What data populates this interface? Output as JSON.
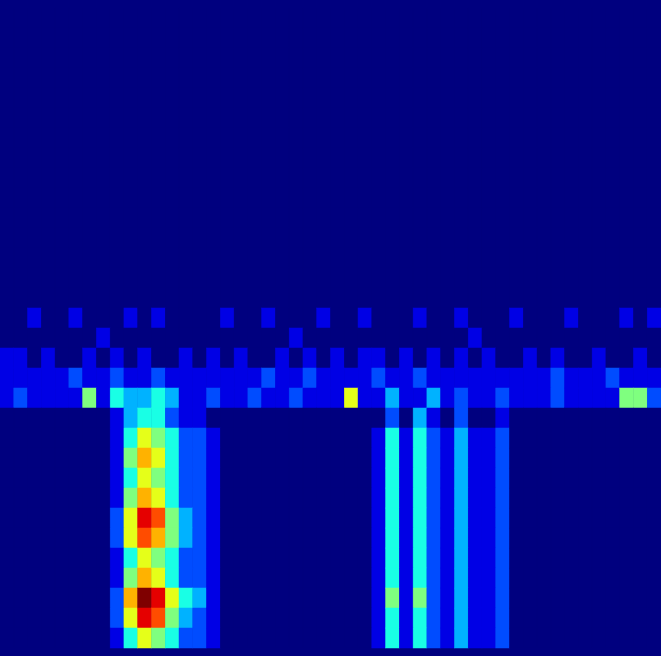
{
  "chart_data": {
    "type": "heatmap",
    "tick_labels": false,
    "zlim": [
      0,
      10
    ],
    "cells": [
      [
        0,
        0,
        0,
        0,
        0,
        0,
        0,
        0,
        0,
        0,
        0,
        0,
        0,
        0,
        0,
        0,
        0,
        0,
        0,
        0,
        0,
        0,
        0,
        0,
        0,
        0,
        0,
        0,
        0,
        0,
        0,
        0,
        0,
        0,
        0,
        0,
        0,
        0,
        0,
        0,
        0,
        0,
        0,
        0,
        0,
        0,
        0,
        0
      ],
      [
        0,
        0,
        0,
        0,
        0,
        0,
        0,
        0,
        0,
        0,
        0,
        0,
        0,
        0,
        0,
        0,
        0,
        0,
        0,
        0,
        0,
        0,
        0,
        0,
        0,
        0,
        0,
        0,
        0,
        0,
        0,
        0,
        0,
        0,
        0,
        0,
        0,
        0,
        0,
        0,
        0,
        0,
        0,
        0,
        0,
        0,
        0,
        0
      ],
      [
        0,
        0,
        0,
        0,
        0,
        0,
        0,
        0,
        0,
        0,
        0,
        0,
        0,
        0,
        0,
        0,
        0,
        0,
        0,
        0,
        0,
        0,
        0,
        0,
        0,
        0,
        0,
        0,
        0,
        0,
        0,
        0,
        0,
        0,
        0,
        0,
        0,
        0,
        0,
        0,
        0,
        0,
        0,
        0,
        0,
        0,
        0,
        0
      ],
      [
        0,
        0,
        0,
        0,
        0,
        0,
        0,
        0,
        0,
        0,
        0,
        0,
        0,
        0,
        0,
        0,
        0,
        0,
        0,
        0,
        0,
        0,
        0,
        0,
        0,
        0,
        0,
        0,
        0,
        0,
        0,
        0,
        0,
        0,
        0,
        0,
        0,
        0,
        0,
        0,
        0,
        0,
        0,
        0,
        0,
        0,
        0,
        0
      ],
      [
        0,
        0,
        0,
        0,
        0,
        0,
        0,
        0,
        0,
        0,
        0,
        0,
        0,
        0,
        0,
        0,
        0,
        0,
        0,
        0,
        0,
        0,
        0,
        0,
        0,
        0,
        0,
        0,
        0,
        0,
        0,
        0,
        0,
        0,
        0,
        0,
        0,
        0,
        0,
        0,
        0,
        0,
        0,
        0,
        0,
        0,
        0,
        0
      ],
      [
        0,
        0,
        0,
        0,
        0,
        0,
        0,
        0,
        0,
        0,
        0,
        0,
        0,
        0,
        0,
        0,
        0,
        0,
        0,
        0,
        0,
        0,
        0,
        0,
        0,
        0,
        0,
        0,
        0,
        0,
        0,
        0,
        0,
        0,
        0,
        0,
        0,
        0,
        0,
        0,
        0,
        0,
        0,
        0,
        0,
        0,
        0,
        0
      ],
      [
        0,
        0,
        0,
        0,
        0,
        0,
        0,
        0,
        0,
        0,
        0,
        0,
        0,
        0,
        0,
        0,
        0,
        0,
        0,
        0,
        0,
        0,
        0,
        0,
        0,
        0,
        0,
        0,
        0,
        0,
        0,
        0,
        0,
        0,
        0,
        0,
        0,
        0,
        0,
        0,
        0,
        0,
        0,
        0,
        0,
        0,
        0,
        0
      ],
      [
        0,
        0,
        0,
        0,
        0,
        0,
        0,
        0,
        0,
        0,
        0,
        0,
        0,
        0,
        0,
        0,
        0,
        0,
        0,
        0,
        0,
        0,
        0,
        0,
        0,
        0,
        0,
        0,
        0,
        0,
        0,
        0,
        0,
        0,
        0,
        0,
        0,
        0,
        0,
        0,
        0,
        0,
        0,
        0,
        0,
        0,
        0,
        0
      ],
      [
        0,
        0,
        0,
        0,
        0,
        0,
        0,
        0,
        0,
        0,
        0,
        0,
        0,
        0,
        0,
        0,
        0,
        0,
        0,
        0,
        0,
        0,
        0,
        0,
        0,
        0,
        0,
        0,
        0,
        0,
        0,
        0,
        0,
        0,
        0,
        0,
        0,
        0,
        0,
        0,
        0,
        0,
        0,
        0,
        0,
        0,
        0,
        0
      ],
      [
        0,
        0,
        0,
        0,
        0,
        0,
        0,
        0,
        0,
        0,
        0,
        0,
        0,
        0,
        0,
        0,
        0,
        0,
        0,
        0,
        0,
        0,
        0,
        0,
        0,
        0,
        0,
        0,
        0,
        0,
        0,
        0,
        0,
        0,
        0,
        0,
        0,
        0,
        0,
        0,
        0,
        0,
        0,
        0,
        0,
        0,
        0,
        0
      ],
      [
        0,
        0,
        0,
        0,
        0,
        0,
        0,
        0,
        0,
        0,
        0,
        0,
        0,
        0,
        0,
        0,
        0,
        0,
        0,
        0,
        0,
        0,
        0,
        0,
        0,
        0,
        0,
        0,
        0,
        0,
        0,
        0,
        0,
        0,
        0,
        0,
        0,
        0,
        0,
        0,
        0,
        0,
        0,
        0,
        0,
        0,
        0,
        0
      ],
      [
        0,
        0,
        0,
        0,
        0,
        0,
        0,
        0,
        0,
        0,
        0,
        0,
        0,
        0,
        0,
        0,
        0,
        0,
        0,
        0,
        0,
        0,
        0,
        0,
        0,
        0,
        0,
        0,
        0,
        0,
        0,
        0,
        0,
        0,
        0,
        0,
        0,
        0,
        0,
        0,
        0,
        0,
        0,
        0,
        0,
        0,
        0,
        0
      ],
      [
        0,
        0,
        0,
        0,
        0,
        0,
        0,
        0,
        0,
        0,
        0,
        0,
        0,
        0,
        0,
        0,
        0,
        0,
        0,
        0,
        0,
        0,
        0,
        0,
        0,
        0,
        0,
        0,
        0,
        0,
        0,
        0,
        0,
        0,
        0,
        0,
        0,
        0,
        0,
        0,
        0,
        0,
        0,
        0,
        0,
        0,
        0,
        0
      ],
      [
        0,
        0,
        0,
        0,
        0,
        0,
        0,
        0,
        0,
        0,
        0,
        0,
        0,
        0,
        0,
        0,
        0,
        0,
        0,
        0,
        0,
        0,
        0,
        0,
        0,
        0,
        0,
        0,
        0,
        0,
        0,
        0,
        0,
        0,
        0,
        0,
        0,
        0,
        0,
        0,
        0,
        0,
        0,
        0,
        0,
        0,
        0,
        0
      ],
      [
        0,
        0,
        0,
        0,
        0,
        0,
        0,
        0,
        0,
        0,
        0,
        0,
        0,
        0,
        0,
        0,
        0,
        0,
        0,
        0,
        0,
        0,
        0,
        0,
        0,
        0,
        0,
        0,
        0,
        0,
        0,
        0,
        0,
        0,
        0,
        0,
        0,
        0,
        0,
        0,
        0,
        0,
        0,
        0,
        0,
        0,
        0,
        0
      ],
      [
        0,
        0,
        1,
        0,
        0,
        1,
        0,
        0,
        0,
        1,
        0,
        1,
        0,
        0,
        0,
        0,
        1,
        0,
        0,
        1,
        0,
        0,
        0,
        1,
        0,
        0,
        1,
        0,
        0,
        0,
        1,
        0,
        0,
        1,
        0,
        0,
        0,
        1,
        0,
        0,
        0,
        1,
        0,
        0,
        0,
        1,
        0,
        1
      ],
      [
        0,
        0,
        0,
        0,
        0,
        0,
        0,
        1,
        0,
        0,
        0,
        0,
        0,
        0,
        0,
        0,
        0,
        0,
        0,
        0,
        0,
        1,
        0,
        0,
        0,
        0,
        0,
        0,
        0,
        0,
        0,
        0,
        0,
        0,
        1,
        0,
        0,
        0,
        0,
        0,
        0,
        0,
        0,
        0,
        0,
        0,
        0,
        0
      ],
      [
        1,
        1,
        0,
        1,
        0,
        0,
        1,
        0,
        1,
        0,
        1,
        0,
        0,
        1,
        0,
        1,
        0,
        1,
        0,
        0,
        1,
        0,
        1,
        0,
        1,
        0,
        1,
        1,
        0,
        1,
        0,
        1,
        0,
        1,
        0,
        1,
        0,
        0,
        1,
        0,
        1,
        0,
        0,
        1,
        0,
        0,
        1,
        0
      ],
      [
        1,
        1,
        1,
        1,
        1,
        2,
        1,
        1,
        2,
        1,
        1,
        2,
        1,
        1,
        1,
        1,
        1,
        1,
        1,
        2,
        1,
        1,
        2,
        1,
        1,
        1,
        1,
        2,
        1,
        1,
        2,
        1,
        1,
        1,
        1,
        1,
        1,
        1,
        1,
        1,
        2,
        1,
        1,
        1,
        2,
        1,
        1,
        1
      ],
      [
        1,
        2,
        1,
        1,
        1,
        1,
        5,
        1,
        4,
        3,
        3,
        4,
        3,
        1,
        1,
        2,
        1,
        1,
        2,
        1,
        1,
        2,
        1,
        1,
        1,
        6,
        1,
        1,
        3,
        1,
        1,
        3,
        1,
        2,
        1,
        1,
        2,
        1,
        1,
        1,
        2,
        1,
        1,
        1,
        1,
        5,
        5,
        2
      ],
      [
        0,
        0,
        0,
        0,
        0,
        0,
        0,
        0,
        1,
        3,
        4,
        4,
        2,
        1,
        1,
        0,
        0,
        0,
        0,
        0,
        0,
        0,
        0,
        0,
        0,
        0,
        0,
        0,
        2,
        0,
        3,
        1,
        0,
        2,
        0,
        0,
        1,
        0,
        0,
        0,
        0,
        0,
        0,
        0,
        0,
        0,
        0,
        0
      ],
      [
        0,
        0,
        0,
        0,
        0,
        0,
        0,
        0,
        1,
        4,
        6,
        5,
        4,
        2,
        2,
        1,
        0,
        0,
        0,
        0,
        0,
        0,
        0,
        0,
        0,
        0,
        0,
        1,
        4,
        1,
        4,
        2,
        1,
        3,
        1,
        1,
        2,
        0,
        0,
        0,
        0,
        0,
        0,
        0,
        0,
        0,
        0,
        0
      ],
      [
        0,
        0,
        0,
        0,
        0,
        0,
        0,
        0,
        1,
        5,
        7,
        6,
        4,
        2,
        2,
        1,
        0,
        0,
        0,
        0,
        0,
        0,
        0,
        0,
        0,
        0,
        0,
        1,
        4,
        1,
        4,
        2,
        1,
        3,
        1,
        1,
        2,
        0,
        0,
        0,
        0,
        0,
        0,
        0,
        0,
        0,
        0,
        0
      ],
      [
        0,
        0,
        0,
        0,
        0,
        0,
        0,
        0,
        1,
        4,
        6,
        5,
        4,
        2,
        2,
        1,
        0,
        0,
        0,
        0,
        0,
        0,
        0,
        0,
        0,
        0,
        0,
        1,
        4,
        1,
        4,
        2,
        1,
        3,
        1,
        1,
        2,
        0,
        0,
        0,
        0,
        0,
        0,
        0,
        0,
        0,
        0,
        0
      ],
      [
        0,
        0,
        0,
        0,
        0,
        0,
        0,
        0,
        1,
        5,
        7,
        6,
        4,
        2,
        2,
        1,
        0,
        0,
        0,
        0,
        0,
        0,
        0,
        0,
        0,
        0,
        0,
        1,
        4,
        1,
        4,
        2,
        1,
        3,
        1,
        1,
        2,
        0,
        0,
        0,
        0,
        0,
        0,
        0,
        0,
        0,
        0,
        0
      ],
      [
        0,
        0,
        0,
        0,
        0,
        0,
        0,
        0,
        2,
        6,
        9,
        8,
        5,
        3,
        2,
        1,
        0,
        0,
        0,
        0,
        0,
        0,
        0,
        0,
        0,
        0,
        0,
        1,
        4,
        1,
        4,
        2,
        1,
        3,
        1,
        1,
        2,
        0,
        0,
        0,
        0,
        0,
        0,
        0,
        0,
        0,
        0,
        0
      ],
      [
        0,
        0,
        0,
        0,
        0,
        0,
        0,
        0,
        2,
        6,
        8,
        7,
        5,
        3,
        2,
        1,
        0,
        0,
        0,
        0,
        0,
        0,
        0,
        0,
        0,
        0,
        0,
        1,
        4,
        1,
        4,
        2,
        1,
        3,
        1,
        1,
        2,
        0,
        0,
        0,
        0,
        0,
        0,
        0,
        0,
        0,
        0,
        0
      ],
      [
        0,
        0,
        0,
        0,
        0,
        0,
        0,
        0,
        1,
        4,
        6,
        5,
        4,
        2,
        2,
        1,
        0,
        0,
        0,
        0,
        0,
        0,
        0,
        0,
        0,
        0,
        0,
        1,
        4,
        1,
        4,
        2,
        1,
        3,
        1,
        1,
        2,
        0,
        0,
        0,
        0,
        0,
        0,
        0,
        0,
        0,
        0,
        0
      ],
      [
        0,
        0,
        0,
        0,
        0,
        0,
        0,
        0,
        1,
        5,
        7,
        6,
        4,
        2,
        2,
        1,
        0,
        0,
        0,
        0,
        0,
        0,
        0,
        0,
        0,
        0,
        0,
        1,
        4,
        1,
        4,
        2,
        1,
        3,
        1,
        1,
        2,
        0,
        0,
        0,
        0,
        0,
        0,
        0,
        0,
        0,
        0,
        0
      ],
      [
        0,
        0,
        0,
        0,
        0,
        0,
        0,
        0,
        2,
        7,
        10,
        9,
        6,
        4,
        3,
        1,
        0,
        0,
        0,
        0,
        0,
        0,
        0,
        0,
        0,
        0,
        0,
        1,
        5,
        1,
        5,
        2,
        1,
        3,
        1,
        1,
        2,
        0,
        0,
        0,
        0,
        0,
        0,
        0,
        0,
        0,
        0,
        0
      ],
      [
        0,
        0,
        0,
        0,
        0,
        0,
        0,
        0,
        2,
        6,
        9,
        8,
        5,
        3,
        2,
        1,
        0,
        0,
        0,
        0,
        0,
        0,
        0,
        0,
        0,
        0,
        0,
        1,
        4,
        1,
        4,
        2,
        1,
        3,
        1,
        1,
        2,
        0,
        0,
        0,
        0,
        0,
        0,
        0,
        0,
        0,
        0,
        0
      ],
      [
        0,
        0,
        0,
        0,
        0,
        0,
        0,
        0,
        1,
        4,
        6,
        5,
        4,
        2,
        2,
        1,
        0,
        0,
        0,
        0,
        0,
        0,
        0,
        0,
        0,
        0,
        0,
        1,
        4,
        1,
        4,
        2,
        1,
        3,
        1,
        1,
        2,
        0,
        0,
        0,
        0,
        0,
        0,
        0,
        0,
        0,
        0,
        0
      ]
    ]
  }
}
